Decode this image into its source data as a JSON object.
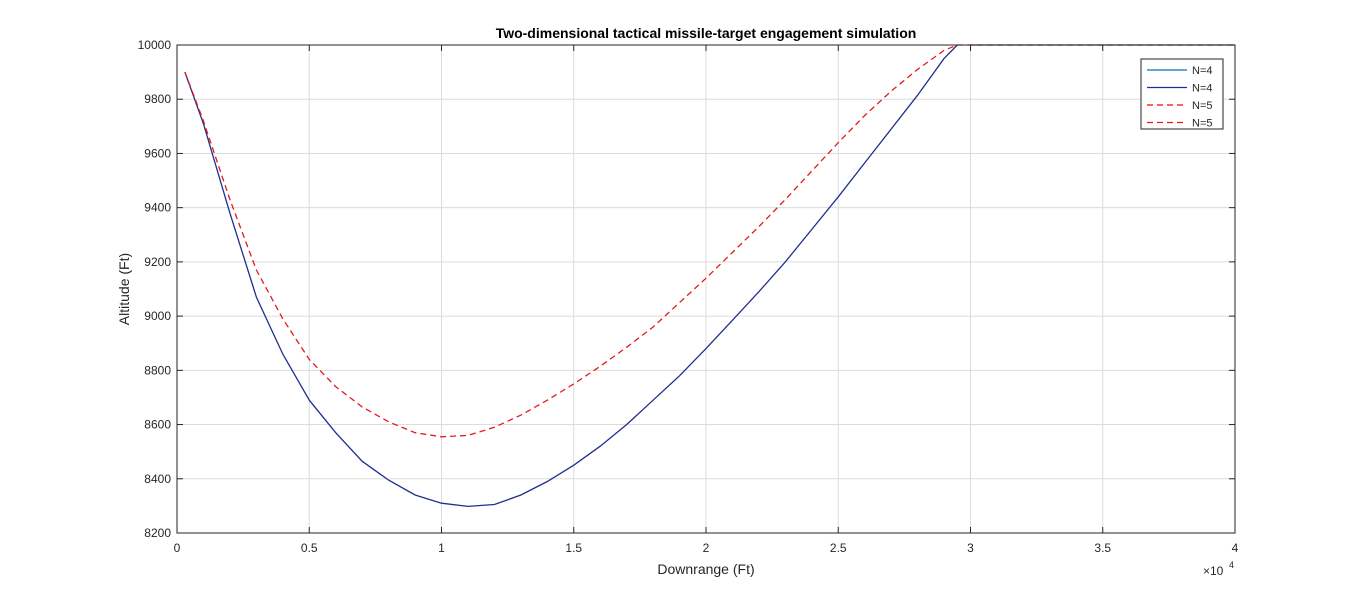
{
  "chart_data": {
    "type": "line",
    "title": "Two-dimensional tactical missile-target engagement simulation",
    "xlabel": "Downrange (Ft)",
    "ylabel": "Altitude (Ft)",
    "x_exponent_label": "×10",
    "x_exponent_power": "4",
    "xlim": [
      0,
      40000
    ],
    "ylim": [
      8200,
      10000
    ],
    "x_ticks": [
      0,
      5000,
      10000,
      15000,
      20000,
      25000,
      30000,
      35000,
      40000
    ],
    "x_tick_labels": [
      "0",
      "0.5",
      "1",
      "1.5",
      "2",
      "2.5",
      "3",
      "3.5",
      "4"
    ],
    "y_ticks": [
      8200,
      8400,
      8600,
      8800,
      9000,
      9200,
      9400,
      9600,
      9800,
      10000
    ],
    "y_tick_labels": [
      "8200",
      "8400",
      "8600",
      "8800",
      "9000",
      "9200",
      "9400",
      "9600",
      "9800",
      "10000"
    ],
    "grid": true,
    "legend_position": "top-right",
    "series": [
      {
        "name": "N=4",
        "color": "#0072BD",
        "dash": "solid",
        "x": [
          30000,
          32000,
          35000,
          38000,
          40000
        ],
        "y": [
          10000,
          10000,
          10000,
          10000,
          10000
        ]
      },
      {
        "name": "N=4",
        "color": "#1F2F8F",
        "dash": "solid",
        "x": [
          300,
          1000,
          2000,
          3000,
          4000,
          5000,
          6000,
          7000,
          8000,
          9000,
          10000,
          11000,
          12000,
          13000,
          14000,
          15000,
          16000,
          17000,
          18000,
          19000,
          20000,
          21000,
          22000,
          23000,
          24000,
          25000,
          26000,
          27000,
          28000,
          29000,
          29500
        ],
        "y": [
          9900,
          9710,
          9380,
          9070,
          8860,
          8690,
          8570,
          8465,
          8395,
          8340,
          8310,
          8298,
          8305,
          8340,
          8390,
          8450,
          8520,
          8600,
          8690,
          8780,
          8880,
          8985,
          9090,
          9200,
          9320,
          9440,
          9565,
          9690,
          9815,
          9950,
          10000
        ]
      },
      {
        "name": "N=5",
        "color": "#FF0000",
        "dash": "dashed",
        "x": [
          29500,
          32000,
          35000,
          38000,
          40000
        ],
        "y": [
          10000,
          10000,
          10000,
          10000,
          10000
        ]
      },
      {
        "name": "N=5",
        "color": "#E31A1C",
        "dash": "dashed",
        "x": [
          300,
          1000,
          2000,
          3000,
          4000,
          5000,
          6000,
          7000,
          8000,
          9000,
          10000,
          11000,
          12000,
          13000,
          14000,
          15000,
          16000,
          17000,
          18000,
          19000,
          20000,
          21000,
          22000,
          23000,
          24000,
          25000,
          26000,
          27000,
          28000,
          29000,
          29500
        ],
        "y": [
          9900,
          9720,
          9430,
          9170,
          8990,
          8840,
          8740,
          8665,
          8610,
          8570,
          8555,
          8560,
          8590,
          8635,
          8690,
          8750,
          8815,
          8885,
          8960,
          9050,
          9140,
          9235,
          9330,
          9430,
          9535,
          9640,
          9740,
          9830,
          9910,
          9980,
          10000
        ]
      }
    ]
  }
}
